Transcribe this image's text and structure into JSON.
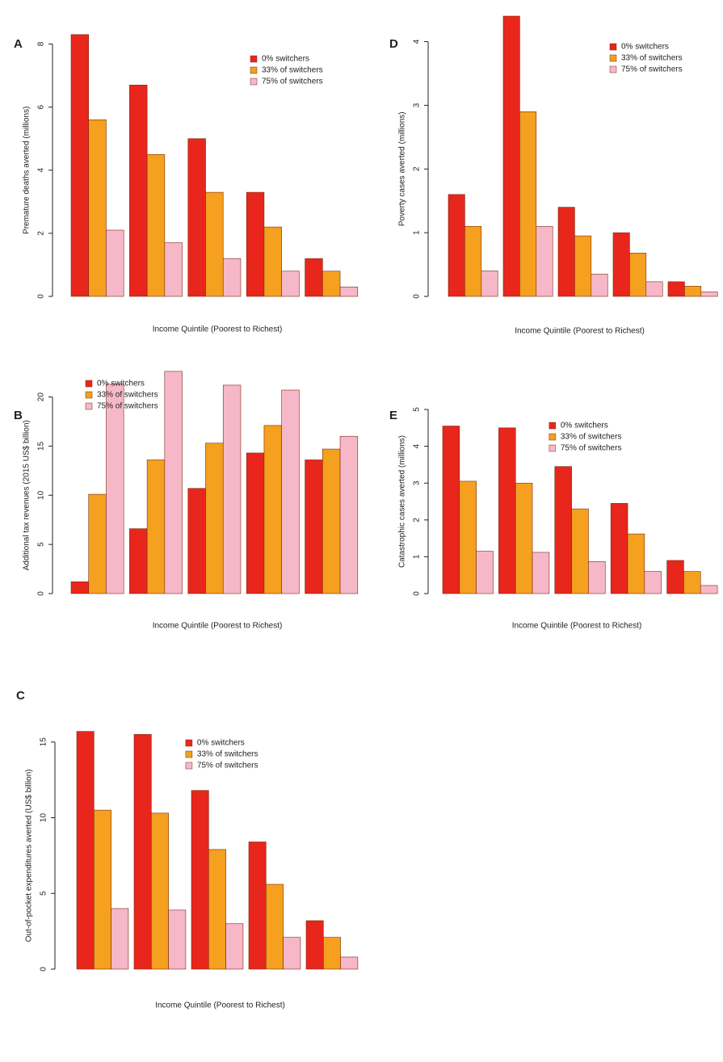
{
  "chart_data": [
    {
      "type": "bar",
      "label": "A",
      "ylabel": "Premature deaths averted (millions)",
      "xlabel": "Income Quintile (Poorest to Richest)",
      "categories": [
        null,
        null,
        null,
        null,
        null
      ],
      "ylim": [
        0,
        8.5
      ],
      "yticks": [
        0,
        2,
        4,
        6,
        8
      ],
      "legend": "topright",
      "series": [
        {
          "name": "0% switchers",
          "color": "#e8261c",
          "values": [
            8.3,
            6.7,
            5.0,
            3.3,
            1.2
          ]
        },
        {
          "name": "33% of switchers",
          "color": "#f5a01e",
          "values": [
            5.6,
            4.5,
            3.3,
            2.2,
            0.8
          ]
        },
        {
          "name": "75% of switchers",
          "color": "#f6b8c8",
          "values": [
            2.1,
            1.7,
            1.2,
            0.8,
            0.3
          ]
        }
      ]
    },
    {
      "type": "bar",
      "label": "B",
      "ylabel": "Additional tax revenues (2015 US$ billion)",
      "xlabel": "Income Quintile (Poorest to Richest)",
      "categories": [
        null,
        null,
        null,
        null,
        null
      ],
      "ylim": [
        0,
        23
      ],
      "yticks": [
        0,
        5,
        10,
        15,
        20
      ],
      "legend": "topleft",
      "series": [
        {
          "name": "0% switchers",
          "color": "#e8261c",
          "values": [
            1.2,
            6.6,
            10.7,
            14.3,
            13.6
          ]
        },
        {
          "name": "33% of switchers",
          "color": "#f5a01e",
          "values": [
            10.1,
            13.6,
            15.3,
            17.1,
            14.7
          ]
        },
        {
          "name": "75% of switchers",
          "color": "#f6b8c8",
          "values": [
            21.3,
            22.6,
            21.2,
            20.7,
            16.0
          ]
        }
      ]
    },
    {
      "type": "bar",
      "label": "C",
      "ylabel": "Out-of-pocket expenditures averted (US$ billion)",
      "xlabel": "Income Quintile (Poorest to Richest)",
      "categories": [
        null,
        null,
        null,
        null,
        null
      ],
      "ylim": [
        0,
        16
      ],
      "yticks": [
        0,
        5,
        10,
        15
      ],
      "legend": "top",
      "series": [
        {
          "name": "0% switchers",
          "color": "#e8261c",
          "values": [
            15.7,
            15.5,
            11.8,
            8.4,
            3.2
          ]
        },
        {
          "name": "33% of switchers",
          "color": "#f5a01e",
          "values": [
            10.5,
            10.3,
            7.9,
            5.6,
            2.1
          ]
        },
        {
          "name": "75% of switchers",
          "color": "#f6b8c8",
          "values": [
            4.0,
            3.9,
            3.0,
            2.1,
            0.8
          ]
        }
      ]
    },
    {
      "type": "bar",
      "label": "D",
      "ylabel": "Poverty cases averted (millions)",
      "xlabel": "Income Quintile (Poorest to Richest)",
      "categories": [
        null,
        null,
        null,
        null,
        null
      ],
      "ylim": [
        0,
        4.4
      ],
      "yticks": [
        0,
        1,
        2,
        3,
        4
      ],
      "legend": "topright",
      "series": [
        {
          "name": "0% switchers",
          "color": "#e8261c",
          "values": [
            1.6,
            4.4,
            1.4,
            1.0,
            0.23
          ]
        },
        {
          "name": "33% of switchers",
          "color": "#f5a01e",
          "values": [
            1.1,
            2.9,
            0.95,
            0.68,
            0.16
          ]
        },
        {
          "name": "75% of switchers",
          "color": "#f6b8c8",
          "values": [
            0.4,
            1.1,
            0.35,
            0.23,
            0.07
          ]
        }
      ]
    },
    {
      "type": "bar",
      "label": "E",
      "ylabel": "Catastrophic cases averted (millions)",
      "xlabel": "Income Quintile (Poorest to Richest)",
      "categories": [
        null,
        null,
        null,
        null,
        null
      ],
      "ylim": [
        0,
        5
      ],
      "yticks": [
        0,
        1,
        2,
        3,
        4,
        5
      ],
      "legend": "top",
      "series": [
        {
          "name": "0% switchers",
          "color": "#e8261c",
          "values": [
            4.55,
            4.5,
            3.45,
            2.45,
            0.9
          ]
        },
        {
          "name": "33% of switchers",
          "color": "#f5a01e",
          "values": [
            3.05,
            3.0,
            2.3,
            1.62,
            0.6
          ]
        },
        {
          "name": "75% of switchers",
          "color": "#f6b8c8",
          "values": [
            1.15,
            1.12,
            0.87,
            0.6,
            0.22
          ]
        }
      ]
    }
  ]
}
